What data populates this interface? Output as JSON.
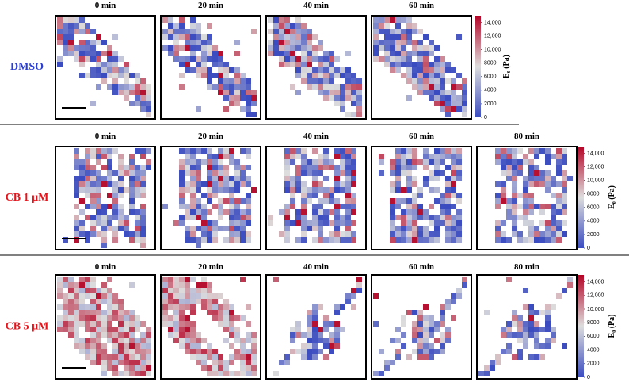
{
  "rows": [
    {
      "label": "DMSO",
      "color": "#2b3fd8",
      "panels": [
        "0 min",
        "20 min",
        "40 min",
        "60 min"
      ],
      "colorbar": {
        "label": "E₀ (Pa)",
        "ticks": [
          "0",
          "2000",
          "4000",
          "6000",
          "8000",
          "10,000",
          "12,000",
          "14,000"
        ]
      }
    },
    {
      "label": "CB 1 μM",
      "color": "#e8141c",
      "panels": [
        "0 min",
        "20 min",
        "40 min",
        "60 min",
        "80 min"
      ],
      "colorbar": {
        "label": "E₀ (Pa)",
        "ticks": [
          "0",
          "2000",
          "4000",
          "6000",
          "8000",
          "10,000",
          "12,000",
          "14,000"
        ]
      }
    },
    {
      "label": "CB 5 μM",
      "color": "#e8141c",
      "panels": [
        "0 min",
        "20 min",
        "40 min",
        "60 min",
        "80 min"
      ],
      "colorbar": {
        "label": "E₀ (Pa)",
        "ticks": [
          "0",
          "2000",
          "4000",
          "6000",
          "8000",
          "10,000",
          "12,000",
          "14,000"
        ]
      }
    }
  ]
}
